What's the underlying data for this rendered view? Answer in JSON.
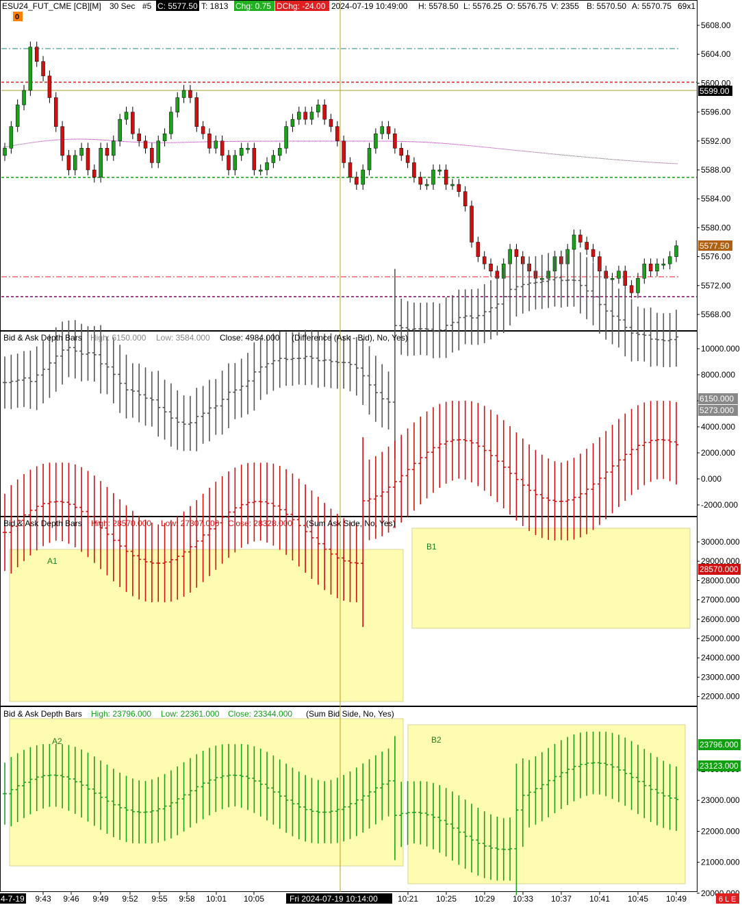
{
  "header": {
    "symbol": "ESU24_FUT_CME [CB][M]",
    "interval": "30 Sec",
    "chart_no": "#5",
    "close": "C: 5577.50",
    "trades": "T: 1813",
    "chg": "Chg: 0.75",
    "dchg": "DChg: -24.00",
    "datetime": "2024-07-19 10:49:00",
    "high": "H: 5578.50",
    "low": "L: 5576.25",
    "open": "O: 5576.75",
    "volume": "V: 2355",
    "bid": "B: 5570.50",
    "ask": "A: 5570.75",
    "size": "69x1",
    "order_badge": "0"
  },
  "colors": {
    "up": "#1aa01a",
    "down": "#d01010",
    "grid_bg": "#ffffff",
    "highlight_box": "#fefcb0",
    "cursor": "#b0a020",
    "chg_bg": "#20b020",
    "dchg_bg": "#e02020",
    "price_tag": "#b06010"
  },
  "price_panel": {
    "axis_labels": [
      "5608.00",
      "5604.00",
      "5600.00",
      "5596.00",
      "5592.00",
      "5588.00",
      "5584.00",
      "5580.00",
      "5576.00",
      "5572.00",
      "5568.00"
    ],
    "price_tags": [
      {
        "text": "5599.00",
        "style": "black"
      },
      {
        "text": "5577.50",
        "style": "orange"
      }
    ]
  },
  "panel_diff": {
    "title": "Bid & Ask Depth Bars",
    "high": "High: 6150.000",
    "low": "Low: 3584.000",
    "close": "Close: 4984.000",
    "params": "(Difference (Ask - Bid), No, Yes)",
    "axis_labels": [
      "10000.000",
      "8000.000",
      "6000.000",
      "4000.000",
      "2000.000",
      "0.000",
      "-2000.000"
    ],
    "tags": [
      "6150.000",
      "5273.000"
    ]
  },
  "panel_ask": {
    "title": "Bid & Ask Depth Bars",
    "high": "High: 28570.000",
    "low": "Low: 27307.000",
    "close": "Close: 28328.000",
    "params": "(Sum Ask Side, No, Yes)",
    "axis_labels": [
      "30000.000",
      "29000.000",
      "28000.000",
      "27000.000",
      "26000.000",
      "25000.000",
      "24000.000",
      "23000.000",
      "22000.000"
    ],
    "tag": "28570.000",
    "box_labels": [
      "A1",
      "B1"
    ]
  },
  "panel_bid": {
    "title": "Bid & Ask Depth Bars",
    "high": "High: 23796.000",
    "low": "Low: 22361.000",
    "close": "Close: 23344.000",
    "params": "(Sum Bid Side, No, Yes)",
    "axis_labels": [
      "24000.000",
      "23000.000",
      "22000.000",
      "21000.000",
      "20000.000"
    ],
    "tags": [
      "23796.000",
      "23123.000"
    ],
    "box_labels": [
      "A2",
      "B2"
    ]
  },
  "time_axis": {
    "labels": [
      "9:43",
      "9:46",
      "9:49",
      "9:52",
      "9:55",
      "9:58",
      "10:01",
      "10:05",
      "10:21",
      "10:25",
      "10:29",
      "10:33",
      "10:37",
      "10:41",
      "10:45",
      "10:49"
    ],
    "left_date": "4-7-19",
    "cursor_label": "Fri 2024-07-19  10:14:00",
    "status": "6 L E"
  },
  "chart_data": {
    "type": "candlestick",
    "price_closes": [
      5591,
      5594,
      5597,
      5599,
      5605,
      5603,
      5601,
      5598,
      5594,
      5590,
      5588,
      5590,
      5591,
      5588,
      5587,
      5591,
      5590,
      5592,
      5595,
      5596,
      5593,
      5592,
      5591,
      5589,
      5592,
      5593,
      5596,
      5598,
      5599,
      5598,
      5594,
      5593,
      5591,
      5592,
      5590,
      5588,
      5590,
      5591,
      5591,
      5588,
      5588,
      5589,
      5590,
      5591,
      5594,
      5595,
      5596,
      5595,
      5596,
      5597,
      5595,
      5594,
      5592,
      5589,
      5587,
      5586,
      5588,
      5591,
      5593,
      5594,
      5593,
      5591,
      5590,
      5589,
      5587,
      5586,
      5586,
      5588,
      5588,
      5586,
      5586,
      5585,
      5583,
      5578,
      5576,
      5575,
      5574,
      5573,
      5575,
      5577,
      5576,
      5575,
      5574,
      5573,
      5573,
      5574,
      5576,
      5575,
      5577,
      5579,
      5578,
      5577,
      5576,
      5574,
      5573,
      5573,
      5574,
      5572,
      5571,
      5573,
      5575,
      5574,
      5575,
      5575,
      5576,
      5577.5
    ]
  }
}
